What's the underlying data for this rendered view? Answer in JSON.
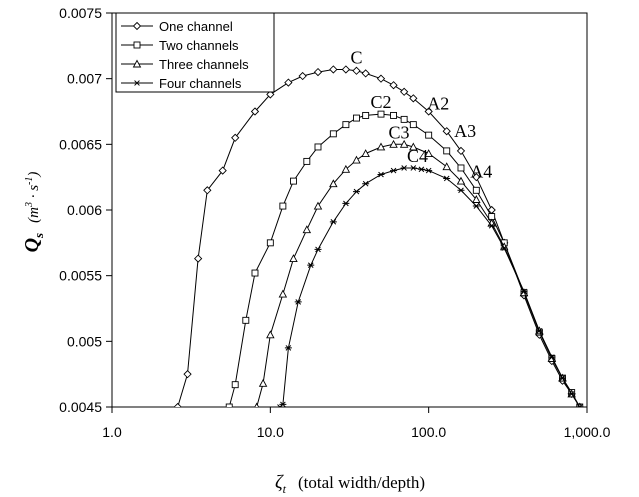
{
  "chart_data": {
    "type": "line",
    "title": "",
    "xlabel": {
      "symbol": "ζ",
      "subscript": "t",
      "text": "(total width/depth)"
    },
    "ylabel": {
      "symbol": "Q",
      "subscript": "s",
      "units": "(m",
      "units_sup": "3",
      "units_mid": " · s",
      "units_sup2": "-1",
      "units_end": ")"
    },
    "x_scale": "log",
    "xlim": [
      1,
      1000
    ],
    "ylim": [
      0.0045,
      0.0075
    ],
    "x_ticks": [
      1,
      10,
      100,
      1000
    ],
    "x_tick_labels": [
      "1.0",
      "10.0",
      "100.0",
      "1,000.0"
    ],
    "y_ticks": [
      0.0045,
      0.005,
      0.0055,
      0.006,
      0.0065,
      0.007,
      0.0075
    ],
    "y_tick_labels": [
      "0.0045",
      "0.005",
      "0.0055",
      "0.006",
      "0.0065",
      "0.007",
      "0.0075"
    ],
    "grid": false,
    "legend_position": "top-left",
    "series": [
      {
        "name": "One channel",
        "marker": "diamond",
        "x": [
          2.6,
          3.0,
          3.5,
          4.0,
          5.0,
          6.0,
          8.0,
          10.0,
          13.0,
          16.0,
          20.0,
          25.0,
          30.0,
          35.0,
          40.0,
          50.0,
          60.0,
          70.0,
          80.0,
          100.0,
          130.0,
          160.0,
          200.0,
          250.0,
          300.0,
          400.0,
          500.0,
          600.0,
          700.0,
          800.0,
          900.0
        ],
        "y": [
          0.0045,
          0.00475,
          0.00563,
          0.00615,
          0.0063,
          0.00655,
          0.00675,
          0.00688,
          0.00697,
          0.00702,
          0.00705,
          0.00707,
          0.00707,
          0.00706,
          0.00704,
          0.007,
          0.00695,
          0.0069,
          0.00685,
          0.00675,
          0.0066,
          0.00645,
          0.00625,
          0.006,
          0.00575,
          0.00535,
          0.00505,
          0.00485,
          0.0047,
          0.0046,
          0.0045
        ]
      },
      {
        "name": "Two channels",
        "marker": "square",
        "x": [
          5.5,
          6.0,
          7.0,
          8.0,
          10.0,
          12.0,
          14.0,
          17.0,
          20.0,
          25.0,
          30.0,
          35.0,
          40.0,
          50.0,
          60.0,
          70.0,
          80.0,
          100.0,
          130.0,
          160.0,
          200.0,
          250.0,
          300.0,
          400.0,
          500.0,
          600.0,
          700.0,
          800.0,
          900.0
        ],
        "y": [
          0.0045,
          0.00467,
          0.00516,
          0.00552,
          0.00575,
          0.00603,
          0.00622,
          0.00637,
          0.00648,
          0.00658,
          0.00665,
          0.0067,
          0.00672,
          0.00673,
          0.00672,
          0.00669,
          0.00665,
          0.00657,
          0.00645,
          0.00632,
          0.00615,
          0.00595,
          0.00575,
          0.00537,
          0.00507,
          0.00487,
          0.00472,
          0.00461,
          0.0045
        ]
      },
      {
        "name": "Three channels",
        "marker": "triangle",
        "x": [
          8.2,
          9.0,
          10.0,
          12.0,
          14.0,
          17.0,
          20.0,
          25.0,
          30.0,
          35.0,
          40.0,
          50.0,
          60.0,
          70.0,
          80.0,
          100.0,
          130.0,
          160.0,
          200.0,
          250.0,
          300.0,
          400.0,
          500.0,
          600.0,
          700.0,
          800.0,
          900.0
        ],
        "y": [
          0.0045,
          0.00468,
          0.00505,
          0.00536,
          0.00563,
          0.00585,
          0.00603,
          0.0062,
          0.00631,
          0.00638,
          0.00643,
          0.00648,
          0.0065,
          0.0065,
          0.00648,
          0.00643,
          0.00633,
          0.00622,
          0.00608,
          0.0059,
          0.00572,
          0.00537,
          0.00508,
          0.00487,
          0.00472,
          0.0046,
          0.0045
        ]
      },
      {
        "name": "Four channels",
        "marker": "star",
        "x": [
          11.5,
          12.0,
          13.0,
          15.0,
          18.0,
          20.0,
          25.0,
          30.0,
          35.0,
          40.0,
          50.0,
          60.0,
          70.0,
          80.0,
          90.0,
          100.0,
          130.0,
          160.0,
          200.0,
          250.0,
          300.0,
          400.0,
          500.0,
          600.0,
          700.0,
          800.0,
          900.0
        ],
        "y": [
          0.0045,
          0.00452,
          0.00495,
          0.0053,
          0.00558,
          0.0057,
          0.00591,
          0.00605,
          0.00614,
          0.0062,
          0.00627,
          0.0063,
          0.00632,
          0.00632,
          0.00631,
          0.0063,
          0.00624,
          0.00615,
          0.00603,
          0.00588,
          0.00571,
          0.00538,
          0.00508,
          0.00488,
          0.00472,
          0.0046,
          0.0045
        ]
      }
    ],
    "annotations": [
      {
        "label": "C",
        "x": 35,
        "y": 0.00707
      },
      {
        "label": "C2",
        "x": 50,
        "y": 0.00673
      },
      {
        "label": "A2",
        "x": 115,
        "y": 0.00672
      },
      {
        "label": "C3",
        "x": 65,
        "y": 0.0065
      },
      {
        "label": "A3",
        "x": 170,
        "y": 0.00651
      },
      {
        "label": "C4",
        "x": 85,
        "y": 0.00632
      },
      {
        "label": "A4",
        "x": 215,
        "y": 0.0062
      }
    ]
  },
  "colors": {
    "line": "#000000",
    "background": "#ffffff"
  }
}
